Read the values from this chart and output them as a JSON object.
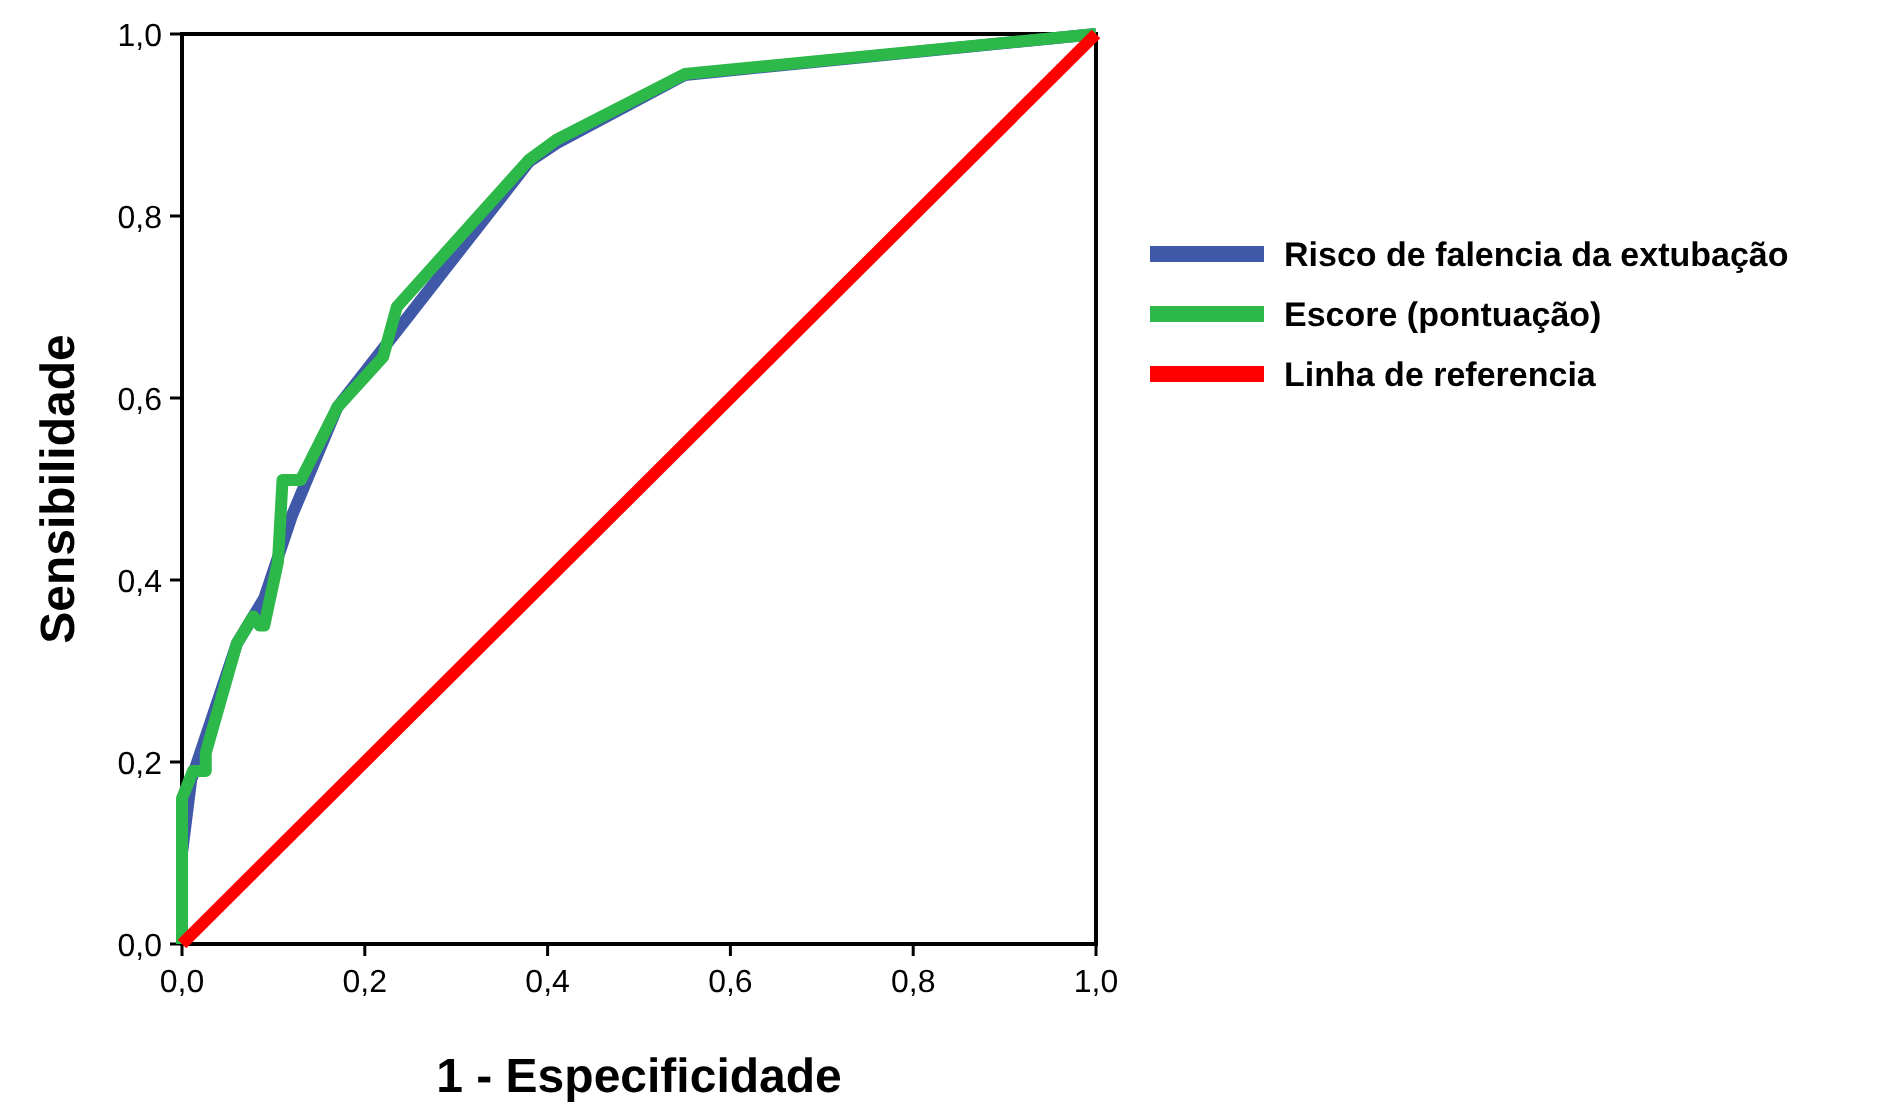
{
  "chart_data": {
    "type": "line",
    "xlabel": "1 - Especificidade",
    "ylabel": "Sensibilidade",
    "xlim": [
      0,
      1
    ],
    "ylim": [
      0,
      1
    ],
    "xticks": [
      {
        "value": 0,
        "label": "0,0"
      },
      {
        "value": 0.2,
        "label": "0,2"
      },
      {
        "value": 0.4,
        "label": "0,4"
      },
      {
        "value": 0.6,
        "label": "0,6"
      },
      {
        "value": 0.8,
        "label": "0,8"
      },
      {
        "value": 1,
        "label": "1,0"
      }
    ],
    "yticks": [
      {
        "value": 0,
        "label": "0,0"
      },
      {
        "value": 0.2,
        "label": "0,2"
      },
      {
        "value": 0.4,
        "label": "0,4"
      },
      {
        "value": 0.6,
        "label": "0,6"
      },
      {
        "value": 0.8,
        "label": "0,8"
      },
      {
        "value": 1,
        "label": "1,0"
      }
    ],
    "grid": false,
    "legend": "right",
    "marker": "none",
    "line_style": "solid",
    "series": [
      {
        "name": "Risco de falencia da extubação",
        "color": "#3f59a8",
        "x": [
          0,
          0,
          0.01,
          0.06,
          0.09,
          0.12,
          0.17,
          0.24,
          0.38,
          0.41,
          0.55,
          1
        ],
        "values": [
          0,
          0.1,
          0.18,
          0.33,
          0.38,
          0.47,
          0.59,
          0.68,
          0.86,
          0.88,
          0.955,
          1
        ]
      },
      {
        "name": "Escore (pontuação)",
        "color": "#2db84a",
        "x": [
          0,
          0,
          0.012,
          0.026,
          0.026,
          0.06,
          0.078,
          0.085,
          0.09,
          0.105,
          0.11,
          0.13,
          0.17,
          0.22,
          0.235,
          0.38,
          0.41,
          0.55,
          1
        ],
        "values": [
          0,
          0.16,
          0.19,
          0.19,
          0.21,
          0.33,
          0.36,
          0.35,
          0.35,
          0.42,
          0.51,
          0.51,
          0.59,
          0.645,
          0.7,
          0.862,
          0.884,
          0.956,
          1
        ]
      },
      {
        "name": "Linha de referencia",
        "color": "#ff0000",
        "x": [
          0,
          1
        ],
        "values": [
          0,
          1
        ]
      }
    ]
  }
}
